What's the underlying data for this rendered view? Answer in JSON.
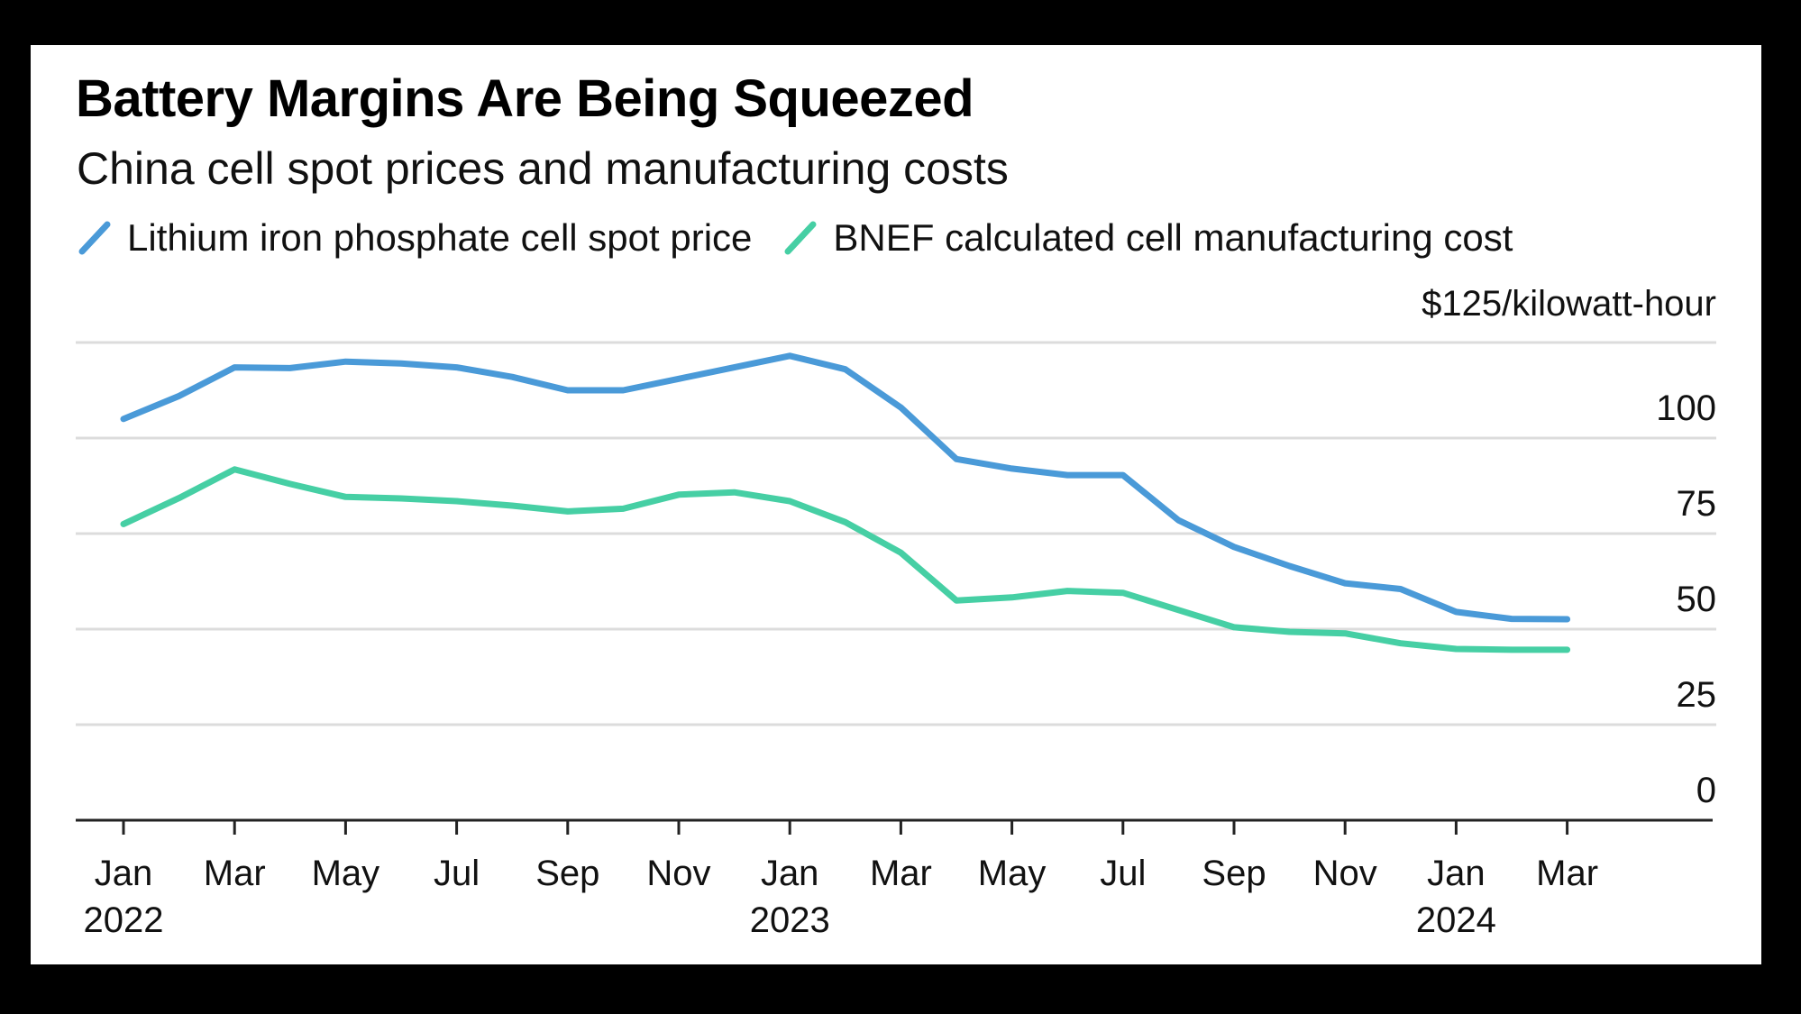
{
  "chart_data": {
    "type": "line",
    "title": "Battery Margins Are Being Squeezed",
    "subtitle": "China cell spot prices and manufacturing costs",
    "ylabel": "$125/kilowatt-hour",
    "xlabel": "",
    "ylim": [
      0,
      125
    ],
    "yticks": [
      0,
      25,
      50,
      75,
      100
    ],
    "grid": true,
    "legend_position": "top-left",
    "x_months_range": [
      0,
      27
    ],
    "x_ticks": [
      {
        "m": 0,
        "label": "Jan",
        "year": "2022"
      },
      {
        "m": 2,
        "label": "Mar",
        "year": ""
      },
      {
        "m": 4,
        "label": "May",
        "year": ""
      },
      {
        "m": 6,
        "label": "Jul",
        "year": ""
      },
      {
        "m": 8,
        "label": "Sep",
        "year": ""
      },
      {
        "m": 10,
        "label": "Nov",
        "year": ""
      },
      {
        "m": 12,
        "label": "Jan",
        "year": "2023"
      },
      {
        "m": 14,
        "label": "Mar",
        "year": ""
      },
      {
        "m": 16,
        "label": "May",
        "year": ""
      },
      {
        "m": 18,
        "label": "Jul",
        "year": ""
      },
      {
        "m": 20,
        "label": "Sep",
        "year": ""
      },
      {
        "m": 22,
        "label": "Nov",
        "year": ""
      },
      {
        "m": 24,
        "label": "Jan",
        "year": "2024"
      },
      {
        "m": 26,
        "label": "Mar",
        "year": ""
      }
    ],
    "series": [
      {
        "name": "Lithium iron phosphate cell spot price",
        "color": "#4a9ad8",
        "months": [
          0,
          1,
          2,
          3,
          4,
          5,
          6,
          7,
          8,
          9,
          10,
          11,
          12,
          13,
          14,
          15,
          16,
          17,
          18,
          19,
          20,
          21,
          22,
          23,
          24,
          25,
          26
        ],
        "values": [
          105,
          111,
          118.5,
          118.3,
          120,
          119.5,
          118.5,
          116,
          112.5,
          112.5,
          115.5,
          118.5,
          121.5,
          118,
          108,
          94.5,
          92,
          90.3,
          90.3,
          78.5,
          71.5,
          66.5,
          62,
          60.5,
          54.5,
          52.7,
          52.6
        ]
      },
      {
        "name": "BNEF calculated cell manufacturing cost",
        "color": "#46cfa4",
        "months": [
          0,
          1,
          2,
          3,
          4,
          5,
          6,
          7,
          8,
          9,
          10,
          11,
          12,
          13,
          14,
          15,
          16,
          17,
          18,
          19,
          20,
          21,
          22,
          23,
          24,
          25,
          26
        ],
        "values": [
          77.5,
          84.3,
          91.8,
          88,
          84.6,
          84.2,
          83.5,
          82.3,
          80.8,
          81.5,
          85.2,
          85.8,
          83.5,
          78,
          70,
          57.5,
          58.3,
          60,
          59.5,
          55,
          50.5,
          49.3,
          48.9,
          46.3,
          44.8,
          44.6,
          44.6
        ]
      }
    ]
  }
}
